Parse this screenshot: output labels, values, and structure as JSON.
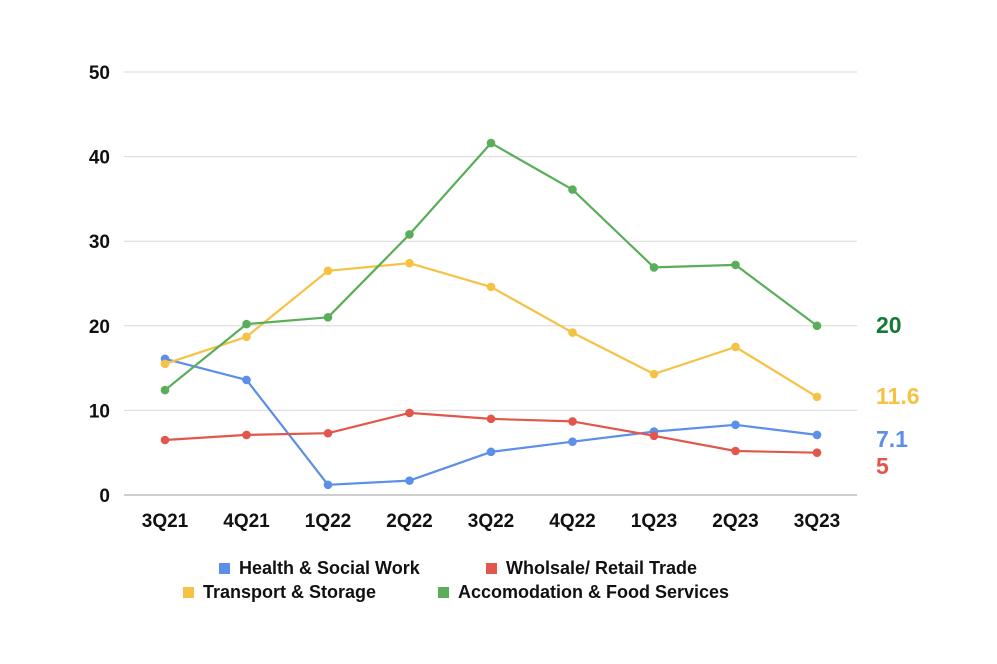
{
  "chart_data": {
    "type": "line",
    "title": "",
    "xlabel": "",
    "ylabel": "",
    "categories": [
      "3Q21",
      "4Q21",
      "1Q22",
      "2Q22",
      "3Q22",
      "4Q22",
      "1Q23",
      "2Q23",
      "3Q23"
    ],
    "ylim": [
      0,
      50
    ],
    "yticks": [
      0,
      10,
      20,
      30,
      40,
      50
    ],
    "grid": true,
    "legend_position": "bottom",
    "series": [
      {
        "name": "Health & Social Work",
        "color": "#5B8FE8",
        "values": [
          16.1,
          13.6,
          1.2,
          1.7,
          5.1,
          6.3,
          7.5,
          8.3,
          7.1
        ],
        "end_label": "7.1"
      },
      {
        "name": "Wholsale/ Retail Trade",
        "color": "#E2574C",
        "values": [
          6.5,
          7.1,
          7.3,
          9.7,
          9.0,
          8.7,
          7.0,
          5.2,
          5.0
        ],
        "end_label": "5"
      },
      {
        "name": "Transport & Storage",
        "color": "#F5C244",
        "values": [
          15.5,
          18.7,
          26.5,
          27.4,
          24.6,
          19.2,
          14.3,
          17.5,
          11.6
        ],
        "end_label": "11.6"
      },
      {
        "name": "Accomodation & Food Services",
        "color": "#5AAE5A",
        "label_color": "#157A35",
        "values": [
          12.4,
          20.2,
          21.0,
          30.8,
          41.6,
          36.1,
          26.9,
          27.2,
          20.0
        ],
        "end_label": "20"
      }
    ]
  }
}
